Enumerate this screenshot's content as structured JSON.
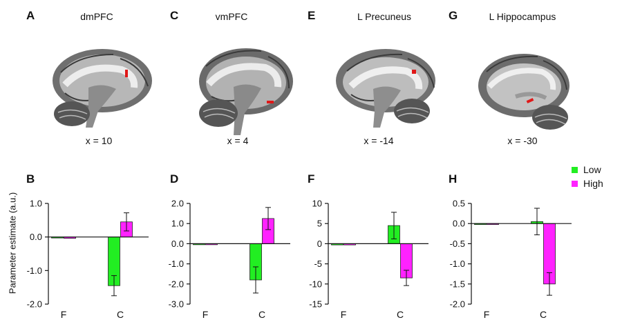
{
  "series_colors": {
    "Low": "#22ee22",
    "High": "#ff22ff"
  },
  "legend": [
    "Low",
    "High"
  ],
  "ylabel": "Parameter estimate (a.u.)",
  "brains": [
    {
      "letter": "A",
      "title": "dmPFC",
      "coord": "x = 10"
    },
    {
      "letter": "C",
      "title": "vmPFC",
      "coord": "x = 4"
    },
    {
      "letter": "E",
      "title": "L Precuneus",
      "coord": "x = -14"
    },
    {
      "letter": "G",
      "title": "L Hippocampus",
      "coord": "x = -30"
    }
  ],
  "chart_data": [
    {
      "type": "bar",
      "letter": "B",
      "categories": [
        "F",
        "C"
      ],
      "ylim": [
        -2.0,
        1.0
      ],
      "ytick_labels": [
        "1.0",
        "0.0",
        "-1.0",
        "-2.0"
      ],
      "yticks": [
        1.0,
        0.0,
        -1.0,
        -2.0
      ],
      "series": [
        {
          "name": "Low",
          "values": [
            -0.03,
            -1.45
          ],
          "errors": [
            0.01,
            0.3
          ]
        },
        {
          "name": "High",
          "values": [
            -0.04,
            0.45
          ],
          "errors": [
            0.01,
            0.27
          ]
        }
      ]
    },
    {
      "type": "bar",
      "letter": "D",
      "categories": [
        "F",
        "C"
      ],
      "ylim": [
        -3.0,
        2.0
      ],
      "ytick_labels": [
        "2.0",
        "1.0",
        "0.0",
        "-1.0",
        "-2.0",
        "-3.0"
      ],
      "yticks": [
        2.0,
        1.0,
        0.0,
        -1.0,
        -2.0,
        -3.0
      ],
      "series": [
        {
          "name": "Low",
          "values": [
            -0.05,
            -1.8
          ],
          "errors": [
            0.02,
            0.65
          ]
        },
        {
          "name": "High",
          "values": [
            -0.05,
            1.25
          ],
          "errors": [
            0.02,
            0.55
          ]
        }
      ]
    },
    {
      "type": "bar",
      "letter": "F",
      "categories": [
        "F",
        "C"
      ],
      "ylim": [
        -15,
        10
      ],
      "ytick_labels": [
        "10",
        "5",
        "0",
        "-5",
        "-10",
        "-15"
      ],
      "yticks": [
        10,
        5,
        0,
        -5,
        -10,
        -15
      ],
      "series": [
        {
          "name": "Low",
          "values": [
            -0.3,
            4.5
          ],
          "errors": [
            0.1,
            3.3
          ]
        },
        {
          "name": "High",
          "values": [
            -0.3,
            -8.5
          ],
          "errors": [
            0.1,
            1.9
          ]
        }
      ]
    },
    {
      "type": "bar",
      "letter": "H",
      "categories": [
        "F",
        "C"
      ],
      "ylim": [
        -2.0,
        0.5
      ],
      "ytick_labels": [
        "0.5",
        "0.0",
        "-0.5",
        "-1.0",
        "-1.5",
        "-2.0"
      ],
      "yticks": [
        0.5,
        0.0,
        -0.5,
        -1.0,
        -1.5,
        -2.0
      ],
      "series": [
        {
          "name": "Low",
          "values": [
            -0.01,
            0.05
          ],
          "errors": [
            0.005,
            0.33
          ]
        },
        {
          "name": "High",
          "values": [
            -0.01,
            -1.5
          ],
          "errors": [
            0.005,
            0.28
          ]
        }
      ]
    }
  ]
}
